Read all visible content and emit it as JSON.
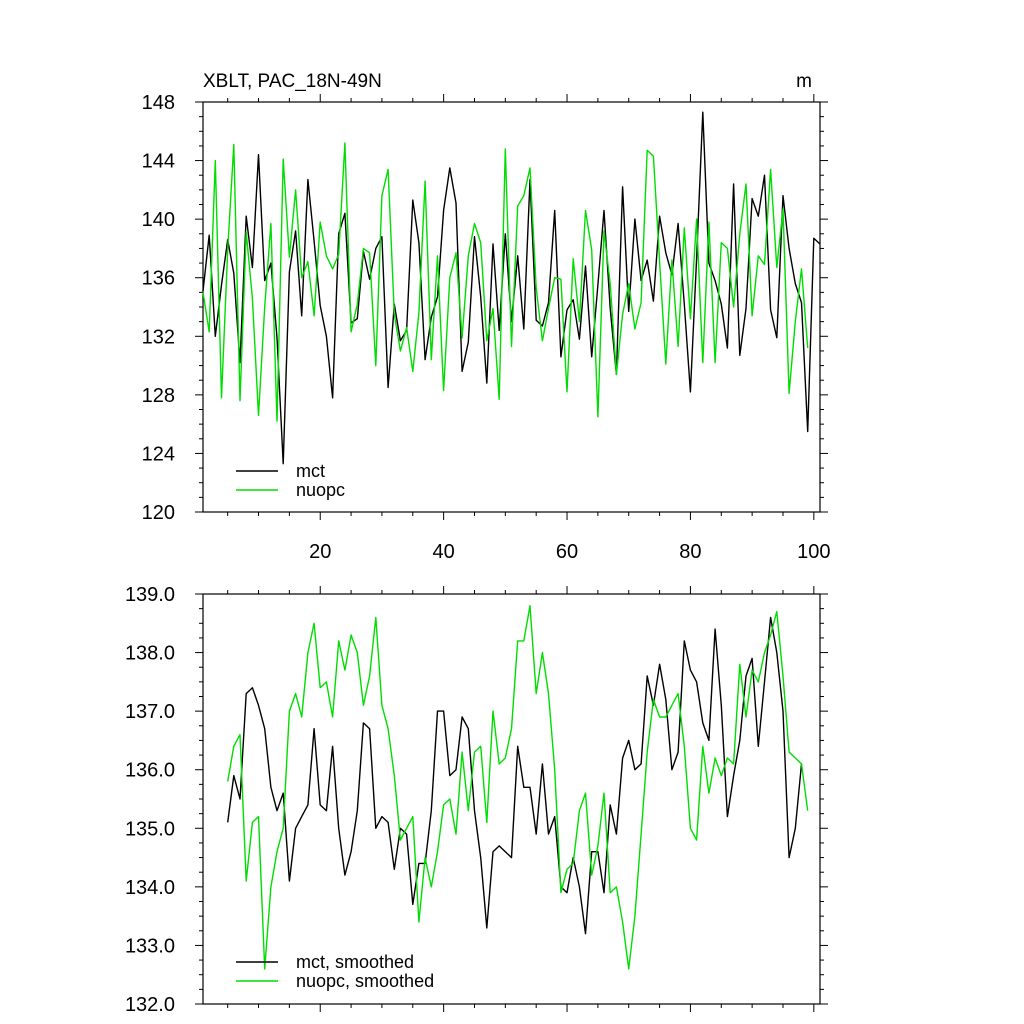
{
  "colors": {
    "mct": "#000000",
    "nuopc": "#00dd00",
    "axis": "#000000",
    "background": "#ffffff"
  },
  "chart_data": [
    {
      "type": "line",
      "title": "XBLT, PAC_18N-49N",
      "units": "m",
      "xlim": [
        1,
        101
      ],
      "ylim": [
        120,
        148
      ],
      "yticks": [
        120,
        124,
        128,
        132,
        136,
        140,
        144,
        148
      ],
      "ytick_labels": [
        "120",
        "124",
        "128",
        "132",
        "136",
        "140",
        "144",
        "148"
      ],
      "xticks": [
        20,
        40,
        60,
        80,
        100
      ],
      "xtick_labels": [
        "20",
        "40",
        "60",
        "80",
        "100"
      ],
      "show_x_labels": true,
      "legend_position": "bottom-left",
      "series": [
        {
          "name": "mct",
          "color": "#000000",
          "values": [
            135.1,
            138.9,
            132.0,
            135.5,
            138.6,
            136.3,
            130.2,
            140.2,
            136.7,
            144.4,
            135.8,
            137.0,
            131.9,
            123.3,
            136.4,
            139.2,
            133.4,
            142.7,
            138.5,
            134.1,
            132.0,
            127.8,
            139.0,
            140.4,
            132.9,
            133.2,
            137.8,
            135.9,
            138.0,
            138.8,
            128.5,
            134.2,
            131.7,
            132.4,
            141.3,
            138.4,
            130.4,
            133.3,
            134.7,
            140.6,
            143.5,
            141.1,
            129.6,
            131.6,
            138.8,
            134.7,
            128.8,
            138.3,
            132.4,
            139.0,
            133.0,
            137.5,
            132.5,
            142.7,
            133.1,
            132.7,
            134.3,
            140.6,
            130.6,
            133.8,
            134.5,
            131.8,
            136.8,
            130.6,
            135.5,
            140.6,
            133.9,
            129.4,
            142.2,
            133.7,
            140.0,
            135.8,
            137.2,
            134.4,
            140.2,
            137.7,
            136.2,
            139.7,
            134.2,
            128.2,
            137.3,
            147.3,
            137.0,
            135.8,
            134.2,
            131.2,
            142.4,
            130.7,
            133.9,
            141.4,
            140.2,
            143.0,
            133.8,
            131.9,
            141.6,
            138.0,
            135.6,
            134.3,
            125.5,
            138.7,
            138.3
          ]
        },
        {
          "name": "nuopc",
          "color": "#00dd00",
          "values": [
            135.0,
            132.3,
            144.0,
            127.8,
            137.9,
            145.1,
            127.6,
            139.1,
            134.6,
            126.6,
            134.0,
            139.7,
            126.2,
            144.1,
            137.4,
            142.0,
            136.0,
            137.1,
            133.4,
            139.8,
            137.5,
            136.6,
            137.6,
            145.2,
            132.3,
            134.2,
            138.0,
            137.7,
            130.0,
            141.6,
            143.4,
            133.5,
            131.0,
            132.6,
            129.6,
            133.6,
            142.6,
            130.4,
            137.5,
            128.3,
            136.0,
            137.7,
            131.9,
            137.5,
            139.7,
            138.4,
            131.7,
            133.9,
            127.7,
            144.8,
            131.3,
            140.9,
            141.6,
            143.5,
            135.3,
            131.7,
            133.9,
            136.0,
            135.9,
            128.2,
            137.3,
            133.0,
            140.6,
            137.9,
            126.5,
            139.2,
            135.6,
            129.4,
            133.5,
            135.6,
            132.5,
            134.3,
            144.7,
            144.3,
            137.1,
            130.1,
            137.2,
            131.3,
            139.4,
            133.2,
            140.0,
            130.2,
            139.8,
            130.2,
            138.4,
            138.0,
            134.0,
            139.0,
            142.4,
            133.4,
            137.5,
            136.9,
            143.4,
            136.7,
            140.7,
            128.1,
            133.0,
            136.6,
            131.2
          ]
        }
      ],
      "legend_labels": [
        "mct",
        "nuopc"
      ]
    },
    {
      "type": "line",
      "title": "",
      "xlim": [
        1,
        101
      ],
      "ylim": [
        132.0,
        139.0
      ],
      "yticks": [
        132,
        133,
        134,
        135,
        136,
        137,
        138,
        139
      ],
      "ytick_labels": [
        "132.0",
        "133.0",
        "134.0",
        "135.0",
        "136.0",
        "137.0",
        "138.0",
        "139.0"
      ],
      "xticks": [
        20,
        40,
        60,
        80,
        100
      ],
      "xtick_labels": [],
      "show_x_labels": false,
      "legend_position": "bottom-left",
      "series": [
        {
          "name": "mct, smoothed",
          "color": "#000000",
          "values": [
            135.1,
            135.9,
            135.5,
            137.3,
            137.4,
            137.1,
            136.7,
            135.7,
            135.3,
            135.6,
            134.1,
            135.0,
            135.2,
            135.4,
            136.7,
            135.4,
            135.3,
            136.4,
            135.0,
            134.2,
            134.6,
            135.3,
            136.8,
            136.7,
            135.0,
            135.2,
            135.1,
            134.3,
            135.0,
            134.9,
            133.7,
            134.4,
            134.4,
            135.3,
            137.0,
            137.0,
            135.9,
            136.0,
            136.9,
            136.7,
            135.3,
            134.5,
            133.3,
            134.6,
            134.7,
            134.6,
            134.5,
            136.4,
            135.7,
            135.7,
            134.9,
            136.1,
            134.9,
            135.2,
            134.0,
            133.9,
            134.5,
            134.0,
            133.2,
            134.6,
            134.6,
            133.9,
            135.4,
            134.9,
            136.2,
            136.5,
            136.0,
            136.1,
            137.6,
            137.1,
            137.8,
            137.2,
            136.0,
            136.3,
            138.2,
            137.7,
            137.5,
            136.8,
            136.5,
            138.4,
            137.1,
            135.2,
            135.9,
            136.5,
            137.6,
            137.9,
            136.4,
            137.5,
            138.6,
            138.0,
            137.0,
            134.5,
            135.0,
            136.1
          ]
        },
        {
          "name": "nuopc, smoothed",
          "color": "#00dd00",
          "values": [
            135.8,
            136.4,
            136.6,
            134.1,
            135.1,
            135.2,
            132.6,
            134.0,
            134.6,
            135.0,
            137.0,
            137.3,
            136.9,
            138.0,
            138.5,
            137.4,
            137.5,
            136.9,
            138.2,
            137.7,
            138.3,
            138.0,
            137.1,
            137.6,
            138.6,
            137.1,
            136.7,
            135.9,
            134.8,
            135.0,
            135.2,
            133.4,
            134.5,
            134.0,
            134.6,
            135.4,
            135.5,
            134.9,
            136.3,
            135.3,
            136.3,
            136.4,
            135.1,
            137.0,
            136.1,
            136.2,
            136.7,
            138.2,
            138.2,
            138.8,
            137.3,
            138.0,
            137.3,
            136.0,
            133.9,
            134.3,
            134.4,
            135.3,
            135.6,
            134.2,
            134.7,
            135.6,
            133.9,
            134.0,
            133.4,
            132.6,
            133.5,
            134.9,
            136.3,
            137.2,
            136.9,
            136.9,
            137.1,
            137.3,
            136.4,
            135.0,
            134.8,
            136.4,
            135.6,
            136.2,
            135.9,
            136.2,
            136.1,
            137.8,
            136.9,
            137.7,
            137.5,
            138.0,
            138.3,
            138.7,
            137.6,
            136.3,
            136.2,
            136.1,
            135.3
          ]
        }
      ],
      "legend_labels": [
        "mct, smoothed",
        "nuopc, smoothed"
      ]
    }
  ]
}
